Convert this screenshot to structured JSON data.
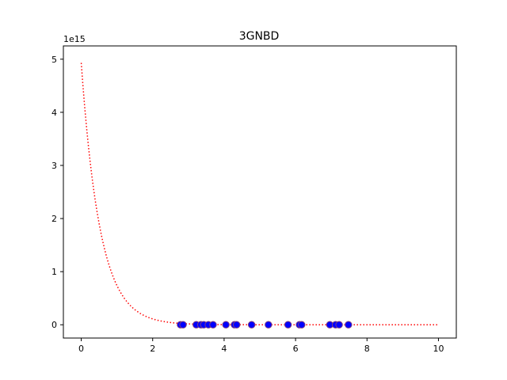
{
  "chart_data": {
    "type": "scatter",
    "title": "3GNBD",
    "xlabel": "",
    "ylabel": "",
    "y_offset_label": "1e15",
    "xlim": [
      -0.5,
      10.5
    ],
    "ylim": [
      -0.25,
      5.25
    ],
    "x_ticks": [
      0,
      2,
      4,
      6,
      8,
      10
    ],
    "x_tick_labels": [
      "0",
      "2",
      "4",
      "6",
      "8",
      "10"
    ],
    "y_ticks": [
      0,
      1,
      2,
      3,
      4,
      5
    ],
    "y_tick_labels": [
      "0",
      "1",
      "2",
      "3",
      "4",
      "5"
    ],
    "grid": false,
    "series": [
      {
        "kind": "line",
        "style": "dotted",
        "color": "#ff0000",
        "curve": "exponential decay",
        "y_at_0": 4.93,
        "decay_rate": 1.9,
        "x_start": 0,
        "x_end": 10
      },
      {
        "kind": "scatter",
        "color": "#0000ff",
        "edge_color": "#7f3f7f",
        "x": [
          2.78,
          2.85,
          3.22,
          3.35,
          3.43,
          3.56,
          3.69,
          4.05,
          4.29,
          4.35,
          4.77,
          5.24,
          5.79,
          6.11,
          6.17,
          6.96,
          7.12,
          7.22,
          7.48
        ],
        "y": [
          0,
          0,
          0,
          0,
          0,
          0,
          0,
          0,
          0,
          0,
          0,
          0,
          0,
          0,
          0,
          0,
          0,
          0,
          0
        ]
      }
    ]
  }
}
